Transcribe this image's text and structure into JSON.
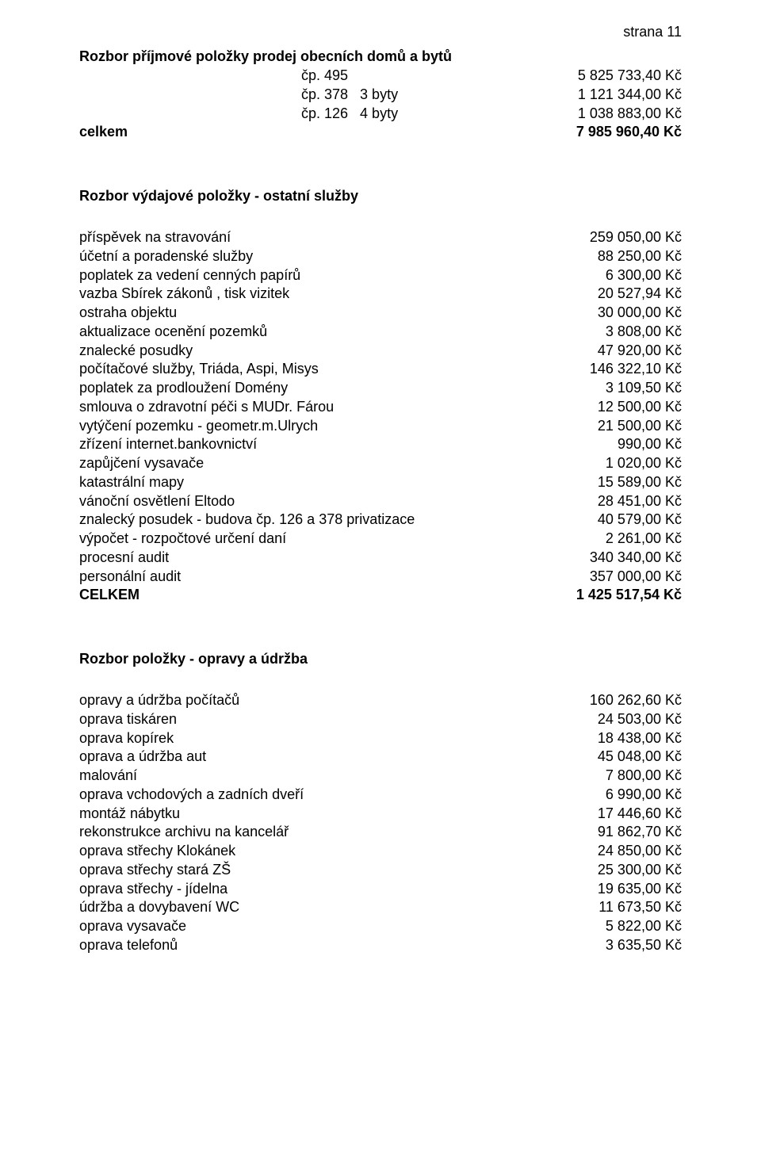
{
  "pageNumber": "strana 11",
  "section1": {
    "title": "Rozbor příjmové položky prodej obecních domů a bytů",
    "rows": [
      {
        "left": "čp. 495",
        "right": "5 825 733,40 Kč",
        "indent": true
      },
      {
        "left": "čp. 378   3 byty",
        "right": "1 121 344,00 Kč",
        "indent": true
      },
      {
        "left": "čp. 126   4 byty",
        "right": "1 038 883,00 Kč",
        "indent": true
      }
    ],
    "total": {
      "left": "celkem",
      "right": "7 985 960,40 Kč"
    }
  },
  "section2": {
    "title": "Rozbor výdajové položky - ostatní služby",
    "rows": [
      {
        "left": "příspěvek na stravování",
        "right": "259 050,00 Kč"
      },
      {
        "left": "účetní a poradenské služby",
        "right": "88 250,00 Kč"
      },
      {
        "left": "poplatek za vedení cenných papírů",
        "right": "6 300,00 Kč"
      },
      {
        "left": "vazba Sbírek zákonů , tisk vizitek",
        "right": "20 527,94 Kč"
      },
      {
        "left": "ostraha objektu",
        "right": "30 000,00 Kč"
      },
      {
        "left": "aktualizace ocenění pozemků",
        "right": "3 808,00 Kč"
      },
      {
        "left": "znalecké posudky",
        "right": "47 920,00 Kč"
      },
      {
        "left": "počítačové služby, Triáda, Aspi, Misys",
        "right": "146 322,10 Kč"
      },
      {
        "left": "poplatek za prodloužení Domény",
        "right": "3 109,50 Kč"
      },
      {
        "left": "smlouva o zdravotní péči s MUDr. Fárou",
        "right": "12 500,00 Kč"
      },
      {
        "left": "vytýčení pozemku - geometr.m.Ulrych",
        "right": "21 500,00 Kč"
      },
      {
        "left": "zřízení internet.bankovnictví",
        "right": "990,00 Kč"
      },
      {
        "left": "zapůjčení vysavače",
        "right": "1 020,00 Kč"
      },
      {
        "left": "katastrální mapy",
        "right": "15 589,00 Kč"
      },
      {
        "left": "vánoční osvětlení Eltodo",
        "right": "28 451,00 Kč"
      },
      {
        "left": "znalecký posudek - budova čp. 126 a 378 privatizace",
        "right": "40 579,00 Kč"
      },
      {
        "left": "výpočet - rozpočtové určení daní",
        "right": "2 261,00 Kč"
      },
      {
        "left": "procesní audit",
        "right": "340 340,00 Kč"
      },
      {
        "left": "personální audit",
        "right": "357 000,00 Kč"
      }
    ],
    "total": {
      "left": "CELKEM",
      "right": "1 425 517,54 Kč"
    }
  },
  "section3": {
    "title": "Rozbor položky - opravy a údržba",
    "rows": [
      {
        "left": "opravy a údržba počítačů",
        "right": "160 262,60 Kč"
      },
      {
        "left": "oprava tiskáren",
        "right": "24 503,00 Kč"
      },
      {
        "left": "oprava kopírek",
        "right": "18 438,00 Kč"
      },
      {
        "left": "oprava a údržba aut",
        "right": "45 048,00 Kč"
      },
      {
        "left": "malování",
        "right": "7 800,00 Kč"
      },
      {
        "left": "oprava vchodových a zadních dveří",
        "right": "6 990,00 Kč"
      },
      {
        "left": "montáž nábytku",
        "right": "17 446,60 Kč"
      },
      {
        "left": "rekonstrukce archivu na kancelář",
        "right": "91 862,70 Kč"
      },
      {
        "left": "oprava střechy Klokánek",
        "right": "24 850,00 Kč"
      },
      {
        "left": "oprava střechy stará ZŠ",
        "right": "25 300,00 Kč"
      },
      {
        "left": "oprava střechy - jídelna",
        "right": "19 635,00 Kč"
      },
      {
        "left": "údržba a dovybavení WC",
        "right": "11 673,50 Kč"
      },
      {
        "left": "oprava vysavače",
        "right": "5 822,00 Kč"
      },
      {
        "left": "oprava telefonů",
        "right": "3 635,50 Kč"
      }
    ]
  }
}
